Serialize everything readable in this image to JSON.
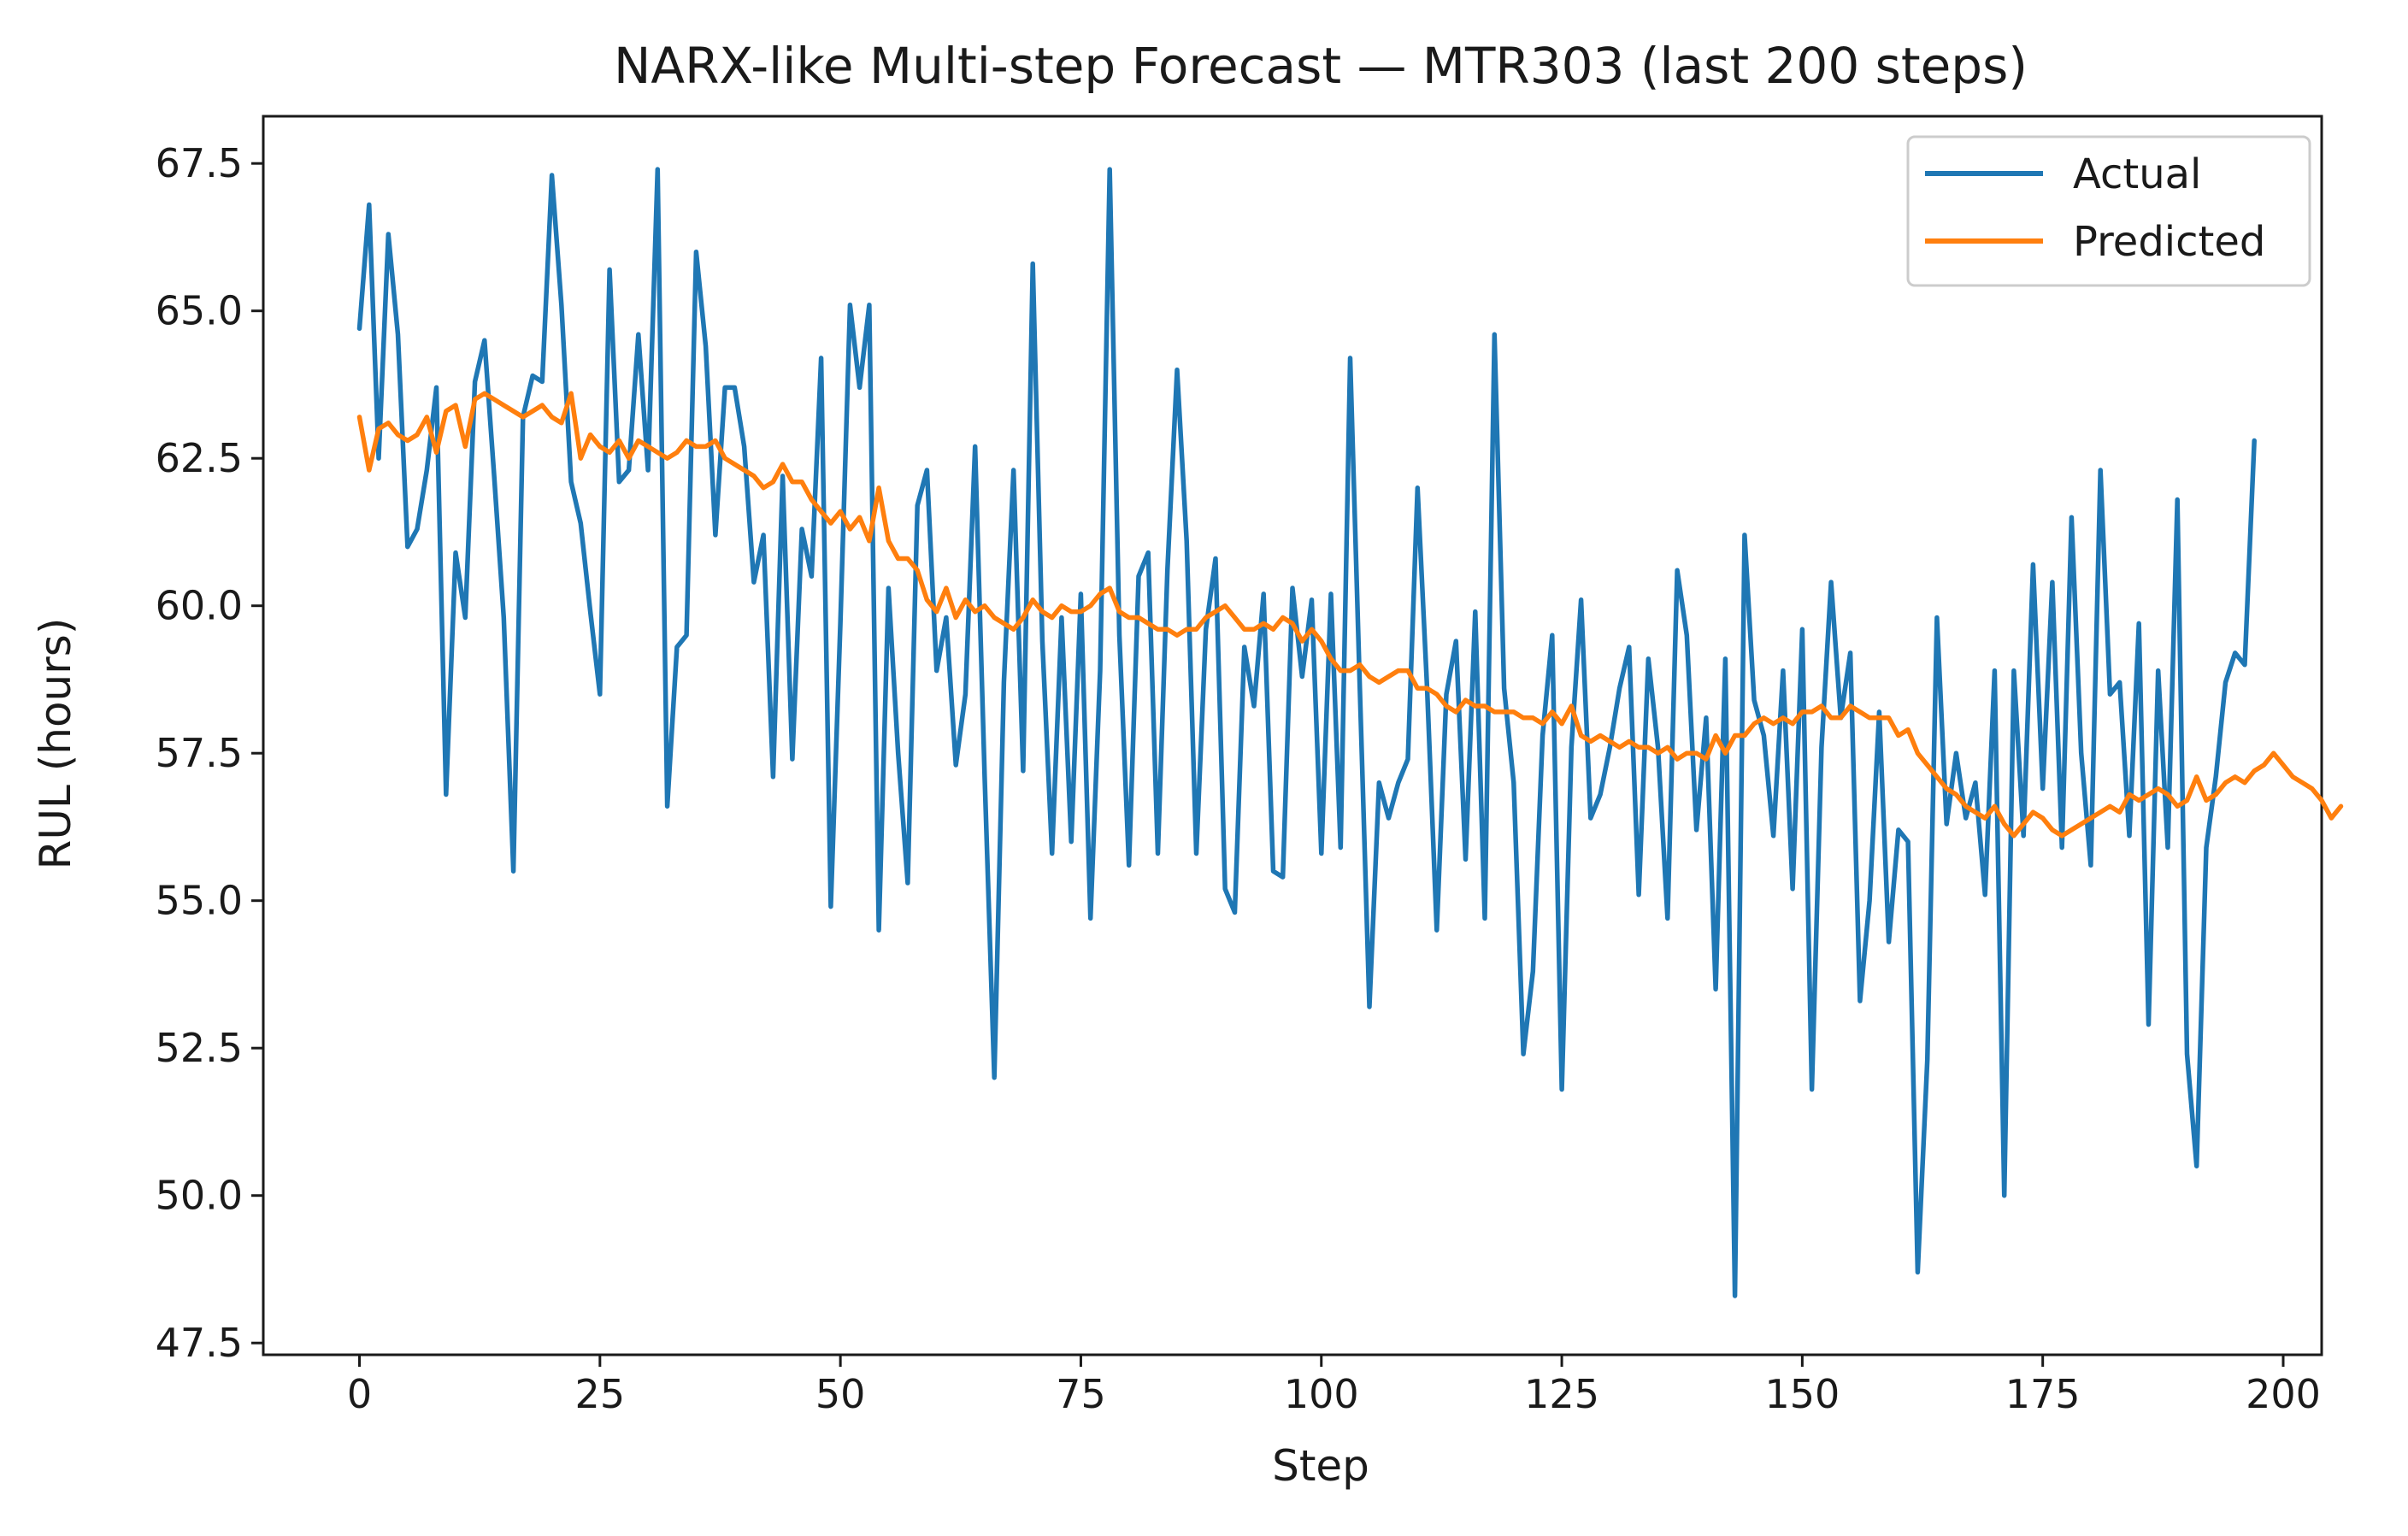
{
  "chart_data": {
    "type": "line",
    "title": "NARX-like Multi-step Forecast — MTR303 (last 200 steps)",
    "xlabel": "Step",
    "ylabel": "RUL (hours)",
    "xlim": [
      -10,
      204
    ],
    "ylim": [
      47.3,
      68.3
    ],
    "xticks": [
      0,
      25,
      50,
      75,
      100,
      125,
      150,
      175,
      200
    ],
    "yticks": [
      47.5,
      50.0,
      52.5,
      55.0,
      57.5,
      60.0,
      62.5,
      65.0,
      67.5
    ],
    "grid": false,
    "legend_position": "top-right",
    "series": [
      {
        "name": "Actual",
        "color": "#1f77b4",
        "values": [
          64.7,
          66.8,
          62.5,
          66.3,
          64.6,
          61.0,
          61.3,
          62.3,
          63.7,
          56.8,
          60.9,
          59.8,
          63.8,
          64.5,
          62.2,
          59.8,
          55.5,
          63.2,
          63.9,
          63.8,
          67.3,
          65.1,
          62.1,
          61.4,
          59.9,
          58.5,
          65.7,
          62.1,
          62.3,
          64.6,
          62.3,
          67.4,
          56.6,
          59.3,
          59.5,
          66.0,
          64.4,
          61.2,
          63.7,
          63.7,
          62.7,
          60.4,
          61.2,
          57.1,
          62.2,
          57.4,
          61.3,
          60.5,
          64.2,
          54.9,
          59.7,
          65.1,
          63.7,
          65.1,
          54.5,
          60.3,
          57.5,
          55.3,
          61.7,
          62.3,
          58.9,
          59.8,
          57.3,
          58.5,
          62.7,
          57.1,
          52.0,
          58.7,
          62.3,
          57.2,
          65.8,
          59.4,
          55.8,
          59.8,
          56.0,
          60.2,
          54.7,
          58.9,
          67.4,
          59.5,
          55.6,
          60.5,
          60.9,
          55.8,
          60.6,
          64.0,
          61.1,
          55.8,
          59.6,
          60.8,
          55.2,
          54.8,
          59.3,
          58.3,
          60.2,
          55.5,
          55.4,
          60.3,
          58.8,
          60.1,
          55.8,
          60.2,
          55.9,
          64.2,
          58.6,
          53.2,
          57.0,
          56.4,
          57.0,
          57.4,
          62.0,
          58.6,
          54.5,
          58.5,
          59.4,
          55.7,
          59.9,
          54.7,
          64.6,
          58.6,
          57.0,
          52.4,
          53.8,
          57.8,
          59.5,
          51.8,
          57.6,
          60.1,
          56.4,
          56.8,
          57.6,
          58.6,
          59.3,
          55.1,
          59.1,
          57.6,
          54.7,
          60.6,
          59.5,
          56.2,
          58.1,
          53.5,
          59.1,
          48.3,
          61.2,
          58.4,
          57.8,
          56.1,
          58.9,
          55.2,
          59.6,
          51.8,
          57.6,
          60.4,
          58.1,
          59.2,
          53.3,
          55.0,
          58.2,
          54.3,
          56.2,
          56.0,
          48.7,
          52.3,
          59.8,
          56.3,
          57.5,
          56.4,
          57.0,
          55.1,
          58.9,
          50.0,
          58.9,
          56.1,
          60.7,
          56.9,
          60.4,
          55.9,
          61.5,
          57.5,
          55.6,
          62.3,
          58.5,
          58.7,
          56.1,
          59.7,
          52.9,
          58.9,
          55.9,
          61.8,
          52.4,
          50.5,
          55.9,
          57.1,
          58.7,
          59.2,
          59.0,
          62.8
        ]
      },
      {
        "name": "Predicted",
        "color": "#ff7f0e",
        "values": [
          63.2,
          62.3,
          63.0,
          63.1,
          62.9,
          62.8,
          62.9,
          63.2,
          62.6,
          63.3,
          63.4,
          62.7,
          63.5,
          63.6,
          63.5,
          63.4,
          63.3,
          63.2,
          63.3,
          63.4,
          63.2,
          63.1,
          63.6,
          62.5,
          62.9,
          62.7,
          62.6,
          62.8,
          62.5,
          62.8,
          62.7,
          62.6,
          62.5,
          62.6,
          62.8,
          62.7,
          62.7,
          62.8,
          62.5,
          62.4,
          62.3,
          62.2,
          62.0,
          62.1,
          62.4,
          62.1,
          62.1,
          61.8,
          61.6,
          61.4,
          61.6,
          61.3,
          61.5,
          61.1,
          62.0,
          61.1,
          60.8,
          60.8,
          60.6,
          60.1,
          59.9,
          60.3,
          59.8,
          60.1,
          59.9,
          60.0,
          59.8,
          59.7,
          59.6,
          59.8,
          60.1,
          59.9,
          59.8,
          60.0,
          59.9,
          59.9,
          60.0,
          60.2,
          60.3,
          59.9,
          59.8,
          59.8,
          59.7,
          59.6,
          59.6,
          59.5,
          59.6,
          59.6,
          59.8,
          59.9,
          60.0,
          59.8,
          59.6,
          59.6,
          59.7,
          59.6,
          59.8,
          59.7,
          59.4,
          59.6,
          59.4,
          59.1,
          58.9,
          58.9,
          59.0,
          58.8,
          58.7,
          58.8,
          58.9,
          58.9,
          58.6,
          58.6,
          58.5,
          58.3,
          58.2,
          58.4,
          58.3,
          58.3,
          58.2,
          58.2,
          58.2,
          58.1,
          58.1,
          58.0,
          58.2,
          58.0,
          58.3,
          57.8,
          57.7,
          57.8,
          57.7,
          57.6,
          57.7,
          57.6,
          57.6,
          57.5,
          57.6,
          57.4,
          57.5,
          57.5,
          57.4,
          57.8,
          57.5,
          57.8,
          57.8,
          58.0,
          58.1,
          58.0,
          58.1,
          58.0,
          58.2,
          58.2,
          58.3,
          58.1,
          58.1,
          58.3,
          58.2,
          58.1,
          58.1,
          58.1,
          57.8,
          57.9,
          57.5,
          57.3,
          57.1,
          56.9,
          56.8,
          56.6,
          56.5,
          56.4,
          56.6,
          56.3,
          56.1,
          56.3,
          56.5,
          56.4,
          56.2,
          56.1,
          56.2,
          56.3,
          56.4,
          56.5,
          56.6,
          56.5,
          56.8,
          56.7,
          56.8,
          56.9,
          56.8,
          56.6,
          56.7,
          57.1,
          56.7,
          56.8,
          57.0,
          57.1,
          57.0,
          57.2,
          57.3,
          57.5,
          57.3,
          57.1,
          57.0,
          56.9,
          56.7,
          56.4,
          56.6
        ]
      }
    ]
  }
}
